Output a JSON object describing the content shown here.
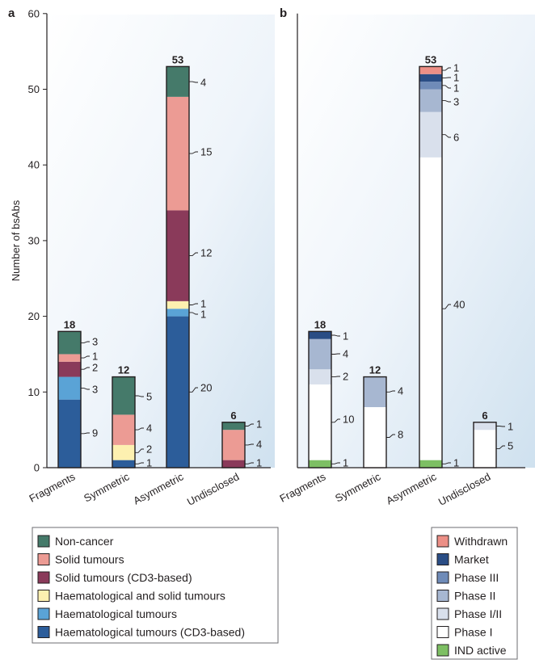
{
  "chart_data": [
    {
      "panel": "a",
      "type": "bar",
      "stacked": true,
      "ylabel": "Number of bsAbs",
      "ylim": [
        0,
        60
      ],
      "yticks": [
        0,
        10,
        20,
        30,
        40,
        50,
        60
      ],
      "categories": [
        "Fragments",
        "Symmetric",
        "Asymmetric",
        "Undisclosed"
      ],
      "totals": [
        18,
        12,
        53,
        6
      ],
      "series": [
        {
          "name": "Haematological tumours (CD3-based)",
          "color": "#2c5d9a",
          "values": [
            9,
            1,
            20,
            0
          ]
        },
        {
          "name": "Haematological tumours",
          "color": "#5aa3d6",
          "values": [
            3,
            0,
            1,
            0
          ]
        },
        {
          "name": "Haematological and solid tumours",
          "color": "#fdf0b0",
          "values": [
            0,
            2,
            1,
            0
          ]
        },
        {
          "name": "Solid tumours (CD3-based)",
          "color": "#8a3a5a",
          "values": [
            2,
            0,
            12,
            1
          ]
        },
        {
          "name": "Solid tumours",
          "color": "#ec9b94",
          "values": [
            1,
            4,
            15,
            4
          ]
        },
        {
          "name": "Non-cancer",
          "color": "#457a6a",
          "values": [
            3,
            5,
            4,
            1
          ]
        }
      ],
      "legend_order": [
        "Non-cancer",
        "Solid tumours",
        "Solid tumours (CD3-based)",
        "Haematological and solid tumours",
        "Haematological tumours",
        "Haematological tumours (CD3-based)"
      ]
    },
    {
      "panel": "b",
      "type": "bar",
      "stacked": true,
      "ylim": [
        0,
        60
      ],
      "categories": [
        "Fragments",
        "Symmetric",
        "Asymmetric",
        "Undisclosed"
      ],
      "totals": [
        18,
        12,
        53,
        6
      ],
      "series": [
        {
          "name": "IND active",
          "color": "#7dbf63",
          "values": [
            1,
            0,
            1,
            0
          ]
        },
        {
          "name": "Phase I",
          "color": "#ffffff",
          "values": [
            10,
            8,
            40,
            5
          ]
        },
        {
          "name": "Phase I/II",
          "color": "#d9e0ec",
          "values": [
            2,
            0,
            6,
            1
          ]
        },
        {
          "name": "Phase II",
          "color": "#a7b7d1",
          "values": [
            4,
            4,
            3,
            0
          ]
        },
        {
          "name": "Phase III",
          "color": "#6f8bb8",
          "values": [
            0,
            0,
            1,
            0
          ]
        },
        {
          "name": "Market",
          "color": "#2a4d85",
          "values": [
            1,
            0,
            1,
            0
          ]
        },
        {
          "name": "Withdrawn",
          "color": "#ec8f86",
          "values": [
            0,
            0,
            1,
            0
          ]
        }
      ],
      "legend_order": [
        "Withdrawn",
        "Market",
        "Phase III",
        "Phase II",
        "Phase I/II",
        "Phase I",
        "IND active"
      ]
    }
  ]
}
